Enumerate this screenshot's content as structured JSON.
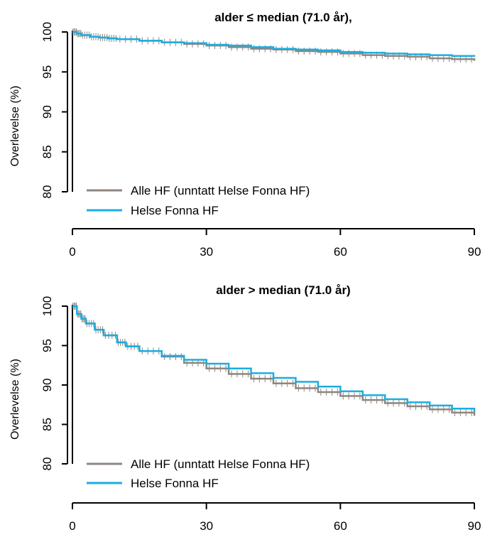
{
  "colors": {
    "alle_hf": "#8e8680",
    "helse_fonna": "#1aaee0"
  },
  "chart_data": [
    {
      "type": "line",
      "title": "alder ≤ median (71.0 år),",
      "ylabel": "Overlevelse (%)",
      "xlabel": "",
      "xlim": [
        0,
        90
      ],
      "ylim": [
        80,
        100
      ],
      "xticks": [
        0,
        30,
        60,
        90
      ],
      "yticks": [
        80,
        85,
        90,
        95,
        100
      ],
      "legend_position": "bottom-left",
      "series": [
        {
          "name": "Alle HF (unntatt Helse Fonna HF)",
          "color": "#8e8680",
          "x": [
            0,
            1,
            2,
            4,
            6,
            8,
            10,
            15,
            20,
            25,
            30,
            35,
            40,
            45,
            50,
            55,
            60,
            65,
            70,
            75,
            80,
            85,
            90
          ],
          "y": [
            100,
            99.8,
            99.6,
            99.4,
            99.3,
            99.2,
            99.1,
            98.9,
            98.7,
            98.5,
            98.3,
            98.1,
            97.9,
            97.8,
            97.6,
            97.5,
            97.3,
            97.1,
            97.0,
            96.9,
            96.7,
            96.6,
            96.4
          ]
        },
        {
          "name": "Helse Fonna HF",
          "color": "#1aaee0",
          "x": [
            0,
            1,
            2,
            4,
            6,
            8,
            10,
            15,
            20,
            25,
            30,
            35,
            40,
            45,
            50,
            55,
            60,
            65,
            70,
            75,
            80,
            85,
            90
          ],
          "y": [
            100,
            99.8,
            99.6,
            99.4,
            99.3,
            99.2,
            99.1,
            98.9,
            98.7,
            98.6,
            98.4,
            98.3,
            98.1,
            97.9,
            97.8,
            97.7,
            97.5,
            97.4,
            97.3,
            97.2,
            97.1,
            97.0,
            96.9
          ]
        }
      ]
    },
    {
      "type": "line",
      "title": "alder > median (71.0 år)",
      "ylabel": "Overlevelse (%)",
      "xlabel": "",
      "xlim": [
        0,
        90
      ],
      "ylim": [
        80,
        100
      ],
      "xticks": [
        0,
        30,
        60,
        90
      ],
      "yticks": [
        80,
        85,
        90,
        95,
        100
      ],
      "legend_position": "bottom-left",
      "series": [
        {
          "name": "Alle HF (unntatt Helse Fonna HF)",
          "color": "#8e8680",
          "x": [
            0,
            1,
            2,
            3,
            5,
            7,
            10,
            12,
            15,
            20,
            25,
            30,
            35,
            40,
            45,
            50,
            55,
            60,
            65,
            70,
            75,
            80,
            85,
            90
          ],
          "y": [
            100,
            99.0,
            98.4,
            97.8,
            97.0,
            96.3,
            95.4,
            94.9,
            94.3,
            93.6,
            92.8,
            92.1,
            91.4,
            90.8,
            90.2,
            89.6,
            89.1,
            88.6,
            88.1,
            87.7,
            87.3,
            86.9,
            86.5,
            86.1
          ]
        },
        {
          "name": "Helse Fonna HF",
          "color": "#1aaee0",
          "x": [
            0,
            1,
            2,
            3,
            5,
            7,
            10,
            12,
            15,
            20,
            25,
            30,
            35,
            40,
            45,
            50,
            55,
            60,
            65,
            70,
            75,
            80,
            85,
            90
          ],
          "y": [
            100,
            99.0,
            98.4,
            97.8,
            97.0,
            96.3,
            95.4,
            94.9,
            94.3,
            93.7,
            93.2,
            92.7,
            92.1,
            91.5,
            90.9,
            90.4,
            89.8,
            89.2,
            88.7,
            88.2,
            87.8,
            87.4,
            87.0,
            86.6
          ]
        }
      ]
    }
  ]
}
